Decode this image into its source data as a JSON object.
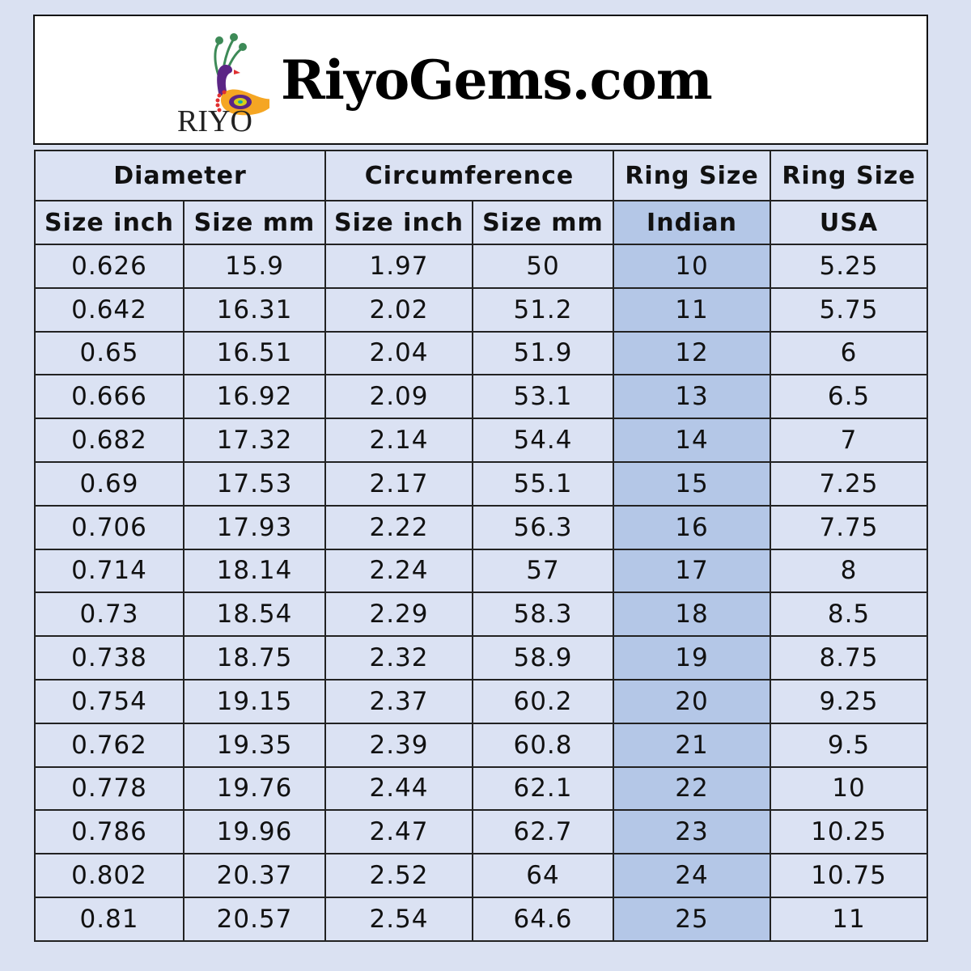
{
  "banner": {
    "logo_text": "RIYO",
    "site_title": "RiyoGems.com"
  },
  "table": {
    "group_headers": [
      "Diameter",
      "Circumference",
      "Ring Size",
      "Ring Size"
    ],
    "sub_headers": [
      "Size inch",
      "Size mm",
      "Size inch",
      "Size mm",
      "Indian",
      "USA"
    ],
    "highlight_color": "#b4c7e7",
    "rows": [
      [
        "0.626",
        "15.9",
        "1.97",
        "50",
        "10",
        "5.25"
      ],
      [
        "0.642",
        "16.31",
        "2.02",
        "51.2",
        "11",
        "5.75"
      ],
      [
        "0.65",
        "16.51",
        "2.04",
        "51.9",
        "12",
        "6"
      ],
      [
        "0.666",
        "16.92",
        "2.09",
        "53.1",
        "13",
        "6.5"
      ],
      [
        "0.682",
        "17.32",
        "2.14",
        "54.4",
        "14",
        "7"
      ],
      [
        "0.69",
        "17.53",
        "2.17",
        "55.1",
        "15",
        "7.25"
      ],
      [
        "0.706",
        "17.93",
        "2.22",
        "56.3",
        "16",
        "7.75"
      ],
      [
        "0.714",
        "18.14",
        "2.24",
        "57",
        "17",
        "8"
      ],
      [
        "0.73",
        "18.54",
        "2.29",
        "58.3",
        "18",
        "8.5"
      ],
      [
        "0.738",
        "18.75",
        "2.32",
        "58.9",
        "19",
        "8.75"
      ],
      [
        "0.754",
        "19.15",
        "2.37",
        "60.2",
        "20",
        "9.25"
      ],
      [
        "0.762",
        "19.35",
        "2.39",
        "60.8",
        "21",
        "9.5"
      ],
      [
        "0.778",
        "19.76",
        "2.44",
        "62.1",
        "22",
        "10"
      ],
      [
        "0.786",
        "19.96",
        "2.47",
        "62.7",
        "23",
        "10.25"
      ],
      [
        "0.802",
        "20.37",
        "2.52",
        "64",
        "24",
        "10.75"
      ],
      [
        "0.81",
        "20.57",
        "2.54",
        "64.6",
        "25",
        "11"
      ]
    ]
  }
}
